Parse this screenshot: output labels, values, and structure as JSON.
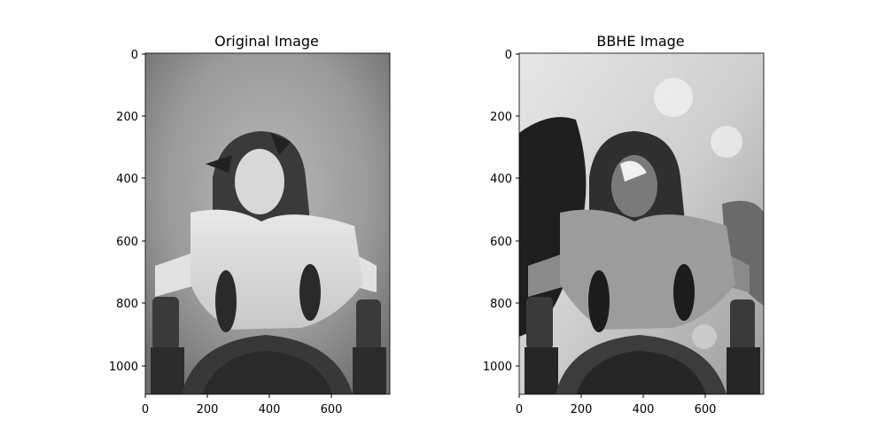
{
  "figure": {
    "panels": [
      {
        "title": "Original Image",
        "image": "grayscale-portrait-girl-original",
        "x_ticks": [
          "0",
          "200",
          "400",
          "600"
        ],
        "y_ticks": [
          "0",
          "200",
          "400",
          "600",
          "800",
          "1000"
        ]
      },
      {
        "title": "BBHE Image",
        "image": "grayscale-portrait-girl-bbhe-equalized",
        "x_ticks": [
          "0",
          "200",
          "400",
          "600"
        ],
        "y_ticks": [
          "0",
          "200",
          "400",
          "600",
          "800",
          "1000"
        ]
      }
    ]
  }
}
